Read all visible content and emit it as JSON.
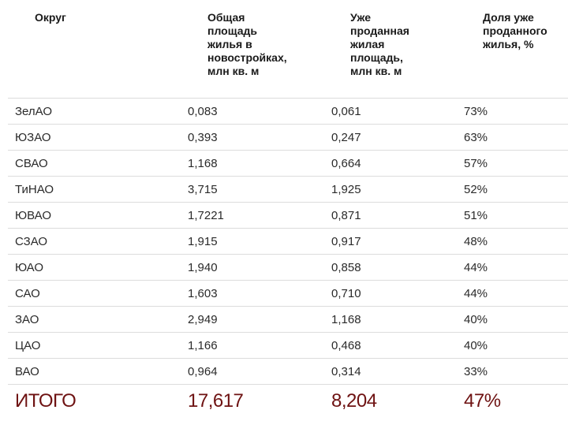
{
  "headers": [
    "Округ",
    "Общая\nплощадь\nжилья в\nновостройках,\nмлн кв. м",
    "Уже\nпроданная\nжилая\nплощадь,\nмлн кв. м",
    "Доля уже\nпроданного\nжилья, %"
  ],
  "rows": [
    [
      "ЗелАО",
      "0,083",
      "0,061",
      "73%"
    ],
    [
      "ЮЗАО",
      "0,393",
      "0,247",
      "63%"
    ],
    [
      "СВАО",
      "1,168",
      "0,664",
      "57%"
    ],
    [
      "ТиНАО",
      "3,715",
      "1,925",
      "52%"
    ],
    [
      "ЮВАО",
      "1,7221",
      "0,871",
      "51%"
    ],
    [
      "СЗАО",
      "1,915",
      "0,917",
      "48%"
    ],
    [
      "ЮАО",
      "1,940",
      "0,858",
      "44%"
    ],
    [
      "САО",
      "1,603",
      "0,710",
      "44%"
    ],
    [
      "ЗАО",
      "2,949",
      "1,168",
      "40%"
    ],
    [
      "ЦАО",
      "1,166",
      "0,468",
      "40%"
    ],
    [
      "ВАО",
      "0,964",
      "0,314",
      "33%"
    ]
  ],
  "total": [
    "ИТОГО",
    "17,617",
    "8,204",
    "47%"
  ],
  "colors": {
    "total": "#6e1212",
    "separator": "#dcdcdc"
  }
}
